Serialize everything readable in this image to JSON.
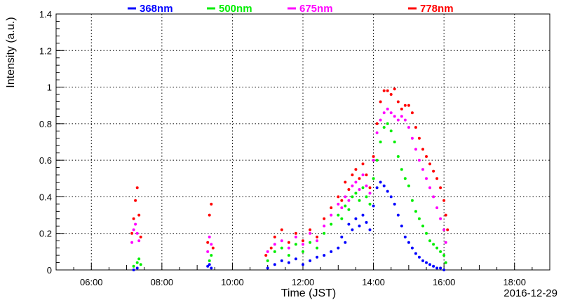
{
  "chart_data": {
    "type": "scatter",
    "title": "",
    "xlabel": "Time (JST)",
    "ylabel": "Intensity (a.u.)",
    "date_label": "2016-12-29",
    "x_unit": "hour of day (JST)",
    "xlim": [
      5.0,
      19.0
    ],
    "ylim": [
      0,
      1.4
    ],
    "grid": true,
    "legend_position": "top",
    "x_ticks": [
      6,
      8,
      10,
      12,
      14,
      16,
      18
    ],
    "x_tick_labels": [
      "06:00",
      "08:00",
      "10:00",
      "12:00",
      "14:00",
      "16:00",
      "18:00"
    ],
    "y_ticks": [
      0,
      0.2,
      0.4,
      0.6,
      0.8,
      1,
      1.2,
      1.4
    ],
    "y_tick_labels": [
      "0",
      "0.2",
      "0.4",
      "0.6",
      "0.8",
      "1",
      "1.2",
      "1.4"
    ],
    "series": [
      {
        "name": "368nm",
        "color": "#0000ff",
        "points": [
          [
            7.2,
            0.0
          ],
          [
            7.3,
            0.01
          ],
          [
            9.3,
            0.02
          ],
          [
            9.35,
            0.03
          ],
          [
            9.4,
            0.01
          ],
          [
            11.0,
            0.01
          ],
          [
            11.2,
            0.03
          ],
          [
            11.4,
            0.05
          ],
          [
            11.6,
            0.04
          ],
          [
            11.8,
            0.06
          ],
          [
            12.0,
            0.03
          ],
          [
            12.2,
            0.05
          ],
          [
            12.4,
            0.07
          ],
          [
            12.6,
            0.08
          ],
          [
            12.8,
            0.1
          ],
          [
            13.0,
            0.12
          ],
          [
            13.1,
            0.18
          ],
          [
            13.2,
            0.15
          ],
          [
            13.3,
            0.25
          ],
          [
            13.4,
            0.22
          ],
          [
            13.5,
            0.28
          ],
          [
            13.6,
            0.24
          ],
          [
            13.7,
            0.3
          ],
          [
            13.8,
            0.26
          ],
          [
            13.9,
            0.22
          ],
          [
            14.0,
            0.35
          ],
          [
            14.1,
            0.45
          ],
          [
            14.2,
            0.48
          ],
          [
            14.3,
            0.46
          ],
          [
            14.4,
            0.43
          ],
          [
            14.5,
            0.4
          ],
          [
            14.6,
            0.36
          ],
          [
            14.7,
            0.3
          ],
          [
            14.8,
            0.24
          ],
          [
            14.9,
            0.18
          ],
          [
            15.0,
            0.15
          ],
          [
            15.1,
            0.12
          ],
          [
            15.2,
            0.09
          ],
          [
            15.3,
            0.07
          ],
          [
            15.4,
            0.05
          ],
          [
            15.5,
            0.04
          ],
          [
            15.6,
            0.03
          ],
          [
            15.7,
            0.02
          ],
          [
            15.8,
            0.01
          ],
          [
            15.9,
            0.01
          ],
          [
            16.0,
            0.0
          ]
        ]
      },
      {
        "name": "500nm",
        "color": "#00ee00",
        "points": [
          [
            7.2,
            0.02
          ],
          [
            7.3,
            0.04
          ],
          [
            7.35,
            0.06
          ],
          [
            7.4,
            0.03
          ],
          [
            9.35,
            0.05
          ],
          [
            9.4,
            0.08
          ],
          [
            11.0,
            0.05
          ],
          [
            11.2,
            0.1
          ],
          [
            11.4,
            0.12
          ],
          [
            11.6,
            0.08
          ],
          [
            11.8,
            0.14
          ],
          [
            12.0,
            0.1
          ],
          [
            12.2,
            0.15
          ],
          [
            12.4,
            0.12
          ],
          [
            12.6,
            0.2
          ],
          [
            12.8,
            0.25
          ],
          [
            13.0,
            0.3
          ],
          [
            13.1,
            0.28
          ],
          [
            13.2,
            0.35
          ],
          [
            13.3,
            0.33
          ],
          [
            13.4,
            0.4
          ],
          [
            13.5,
            0.42
          ],
          [
            13.6,
            0.38
          ],
          [
            13.7,
            0.45
          ],
          [
            13.8,
            0.4
          ],
          [
            13.9,
            0.36
          ],
          [
            14.0,
            0.5
          ],
          [
            14.1,
            0.6
          ],
          [
            14.2,
            0.7
          ],
          [
            14.3,
            0.78
          ],
          [
            14.4,
            0.8
          ],
          [
            14.5,
            0.76
          ],
          [
            14.6,
            0.7
          ],
          [
            14.7,
            0.62
          ],
          [
            14.8,
            0.55
          ],
          [
            14.9,
            0.5
          ],
          [
            15.0,
            0.46
          ],
          [
            15.1,
            0.38
          ],
          [
            15.2,
            0.32
          ],
          [
            15.3,
            0.28
          ],
          [
            15.4,
            0.24
          ],
          [
            15.5,
            0.2
          ],
          [
            15.6,
            0.16
          ],
          [
            15.7,
            0.14
          ],
          [
            15.8,
            0.12
          ],
          [
            15.9,
            0.1
          ],
          [
            16.0,
            0.08
          ],
          [
            16.05,
            0.04
          ]
        ]
      },
      {
        "name": "675nm",
        "color": "#ff00ff",
        "points": [
          [
            7.15,
            0.15
          ],
          [
            7.2,
            0.22
          ],
          [
            7.25,
            0.25
          ],
          [
            7.3,
            0.2
          ],
          [
            7.35,
            0.16
          ],
          [
            9.3,
            0.1
          ],
          [
            9.35,
            0.18
          ],
          [
            9.4,
            0.14
          ],
          [
            11.0,
            0.1
          ],
          [
            11.2,
            0.14
          ],
          [
            11.4,
            0.16
          ],
          [
            11.6,
            0.12
          ],
          [
            11.8,
            0.18
          ],
          [
            12.0,
            0.14
          ],
          [
            12.2,
            0.2
          ],
          [
            12.4,
            0.16
          ],
          [
            12.6,
            0.24
          ],
          [
            12.8,
            0.3
          ],
          [
            13.0,
            0.36
          ],
          [
            13.1,
            0.34
          ],
          [
            13.2,
            0.4
          ],
          [
            13.3,
            0.38
          ],
          [
            13.4,
            0.46
          ],
          [
            13.5,
            0.48
          ],
          [
            13.6,
            0.44
          ],
          [
            13.7,
            0.52
          ],
          [
            13.8,
            0.46
          ],
          [
            13.9,
            0.42
          ],
          [
            14.0,
            0.6
          ],
          [
            14.1,
            0.75
          ],
          [
            14.2,
            0.82
          ],
          [
            14.3,
            0.86
          ],
          [
            14.4,
            0.88
          ],
          [
            14.5,
            0.86
          ],
          [
            14.6,
            0.84
          ],
          [
            14.7,
            0.82
          ],
          [
            14.8,
            0.84
          ],
          [
            14.9,
            0.82
          ],
          [
            15.0,
            0.78
          ],
          [
            15.1,
            0.72
          ],
          [
            15.2,
            0.66
          ],
          [
            15.3,
            0.6
          ],
          [
            15.4,
            0.55
          ],
          [
            15.5,
            0.5
          ],
          [
            15.6,
            0.45
          ],
          [
            15.7,
            0.4
          ],
          [
            15.8,
            0.34
          ],
          [
            15.9,
            0.28
          ],
          [
            16.0,
            0.22
          ],
          [
            16.05,
            0.15
          ]
        ]
      },
      {
        "name": "778nm",
        "color": "#ff0000",
        "points": [
          [
            7.15,
            0.2
          ],
          [
            7.2,
            0.28
          ],
          [
            7.25,
            0.38
          ],
          [
            7.3,
            0.45
          ],
          [
            7.35,
            0.3
          ],
          [
            7.4,
            0.18
          ],
          [
            9.3,
            0.15
          ],
          [
            9.35,
            0.3
          ],
          [
            9.4,
            0.36
          ],
          [
            9.45,
            0.12
          ],
          [
            10.95,
            0.08
          ],
          [
            11.1,
            0.12
          ],
          [
            11.2,
            0.18
          ],
          [
            11.4,
            0.22
          ],
          [
            11.6,
            0.15
          ],
          [
            11.8,
            0.2
          ],
          [
            12.0,
            0.16
          ],
          [
            12.2,
            0.22
          ],
          [
            12.4,
            0.18
          ],
          [
            12.6,
            0.28
          ],
          [
            12.8,
            0.34
          ],
          [
            13.0,
            0.4
          ],
          [
            13.1,
            0.38
          ],
          [
            13.2,
            0.48
          ],
          [
            13.3,
            0.44
          ],
          [
            13.4,
            0.52
          ],
          [
            13.5,
            0.55
          ],
          [
            13.6,
            0.5
          ],
          [
            13.7,
            0.58
          ],
          [
            13.8,
            0.52
          ],
          [
            13.9,
            0.45
          ],
          [
            14.0,
            0.62
          ],
          [
            14.1,
            0.8
          ],
          [
            14.2,
            0.92
          ],
          [
            14.3,
            0.98
          ],
          [
            14.4,
            0.98
          ],
          [
            14.5,
            0.96
          ],
          [
            14.6,
            0.99
          ],
          [
            14.7,
            0.92
          ],
          [
            14.8,
            0.88
          ],
          [
            14.9,
            0.9
          ],
          [
            15.0,
            0.9
          ],
          [
            15.1,
            0.86
          ],
          [
            15.2,
            0.78
          ],
          [
            15.3,
            0.72
          ],
          [
            15.4,
            0.66
          ],
          [
            15.5,
            0.62
          ],
          [
            15.6,
            0.58
          ],
          [
            15.7,
            0.54
          ],
          [
            15.8,
            0.5
          ],
          [
            15.9,
            0.45
          ],
          [
            16.0,
            0.38
          ],
          [
            16.05,
            0.3
          ],
          [
            16.1,
            0.22
          ]
        ]
      }
    ]
  }
}
